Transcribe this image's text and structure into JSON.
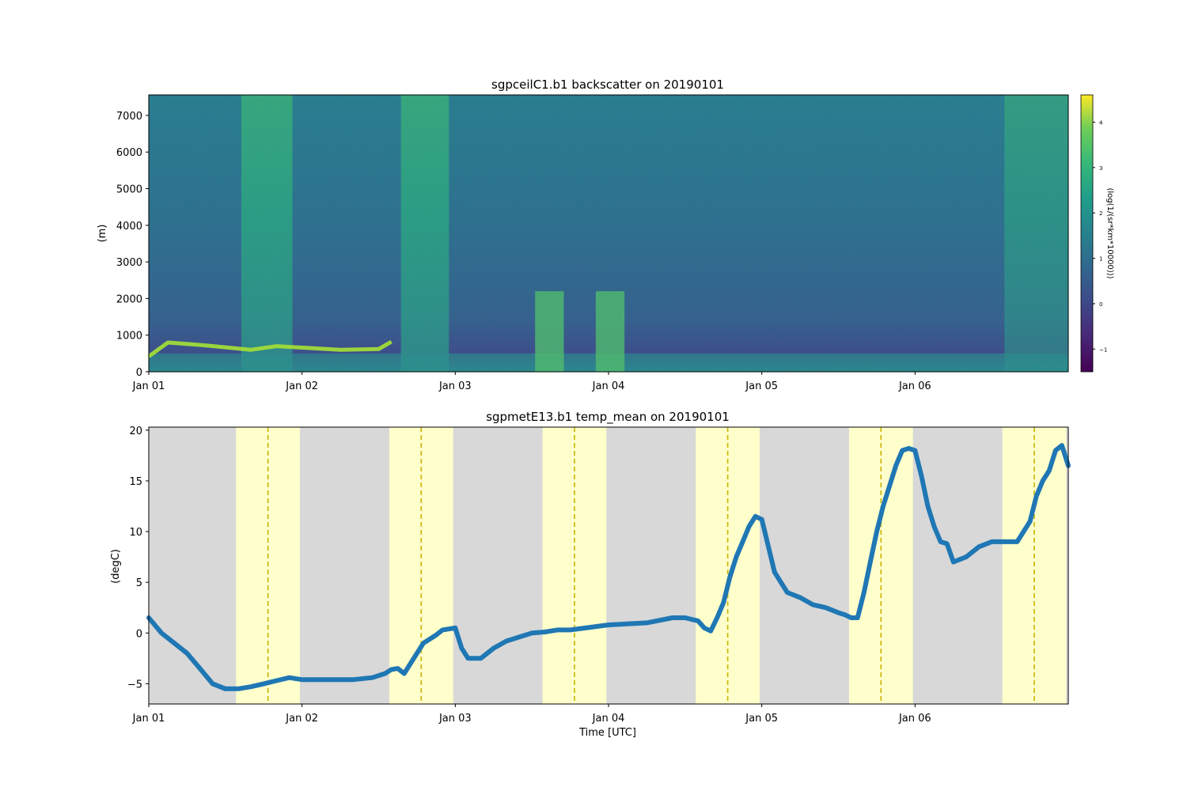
{
  "chart_data": [
    {
      "type": "heatmap",
      "title": "sgpceilC1.b1 backscatter on 20190101",
      "ylabel": "(m)",
      "xlabel": "",
      "x_ticks": [
        "Jan 01",
        "Jan 02",
        "Jan 03",
        "Jan 04",
        "Jan 05",
        "Jan 06"
      ],
      "xlim": [
        "2019-01-01T00:00",
        "2019-01-07T00:00"
      ],
      "ylim": [
        0,
        7560
      ],
      "y_ticks": [
        0,
        1000,
        2000,
        3000,
        4000,
        5000,
        6000,
        7000
      ],
      "colorbar": {
        "label": "(log(1/(sr*km*10000)))",
        "range": [
          -1.5,
          4.6
        ],
        "ticks": [
          -1,
          0,
          1,
          2,
          3,
          4
        ],
        "tick_labels": [
          "−1",
          "0",
          "1",
          "2",
          "3",
          "4"
        ],
        "colormap": "viridis"
      },
      "cloud_base_layer": {
        "name": "cloud base",
        "x": [
          "2019-01-01T00:00",
          "2019-01-01T03:00",
          "2019-01-01T09:00",
          "2019-01-01T16:00",
          "2019-01-01T20:00",
          "2019-01-02T06:00",
          "2019-01-02T12:00",
          "2019-01-02T14:00"
        ],
        "y": [
          420,
          800,
          720,
          600,
          700,
          600,
          620,
          820
        ]
      },
      "notes_visible": "high-backscatter columns near Jan 01 14-22h and Jan 02 14-24h; precipitation near Jan 03 12h - Jan 04 02h"
    },
    {
      "type": "line",
      "title": "sgpmetE13.b1 temp_mean on 20190101",
      "xlabel": "Time [UTC]",
      "ylabel": "(degC)",
      "x_ticks": [
        "Jan 01",
        "Jan 02",
        "Jan 03",
        "Jan 04",
        "Jan 05",
        "Jan 06"
      ],
      "xlim": [
        "2019-01-01T00:00",
        "2019-01-07T00:00"
      ],
      "ylim": [
        -7,
        20.3
      ],
      "y_ticks": [
        -5,
        0,
        5,
        10,
        15,
        20
      ],
      "y_tick_labels": [
        "−5",
        "0",
        "5",
        "10",
        "15",
        "20"
      ],
      "daylight_bands": [
        [
          "2019-01-01T13:40",
          "2019-01-01T23:40"
        ],
        [
          "2019-01-02T13:40",
          "2019-01-02T23:40"
        ],
        [
          "2019-01-03T13:40",
          "2019-01-03T23:40"
        ],
        [
          "2019-01-04T13:40",
          "2019-01-04T23:40"
        ],
        [
          "2019-01-05T13:40",
          "2019-01-05T23:40"
        ],
        [
          "2019-01-06T13:40",
          "2019-01-06T23:40"
        ]
      ],
      "solar_noon_lines": [
        "2019-01-01T18:40",
        "2019-01-02T18:40",
        "2019-01-03T18:40",
        "2019-01-04T18:40",
        "2019-01-05T18:40",
        "2019-01-06T18:40"
      ],
      "colors": {
        "night": "#d8d8d8",
        "day": "#ffffcc",
        "noon_line": "#c8b400",
        "series": "#1f77b4"
      },
      "series": [
        {
          "x": [
            "2019-01-01T00:00",
            "2019-01-01T02:00",
            "2019-01-01T04:00",
            "2019-01-01T06:00",
            "2019-01-01T08:00",
            "2019-01-01T10:00",
            "2019-01-01T12:00",
            "2019-01-01T14:00",
            "2019-01-01T16:00",
            "2019-01-01T18:00",
            "2019-01-01T20:00",
            "2019-01-01T22:00",
            "2019-01-02T00:00",
            "2019-01-02T02:00",
            "2019-01-02T05:00",
            "2019-01-02T08:00",
            "2019-01-02T11:00",
            "2019-01-02T13:00",
            "2019-01-02T14:00",
            "2019-01-02T15:00",
            "2019-01-02T16:00",
            "2019-01-02T17:00",
            "2019-01-02T19:00",
            "2019-01-02T21:00",
            "2019-01-02T22:00",
            "2019-01-03T00:00",
            "2019-01-03T01:00",
            "2019-01-03T02:00",
            "2019-01-03T03:00",
            "2019-01-03T04:00",
            "2019-01-03T05:00",
            "2019-01-03T06:00",
            "2019-01-03T08:00",
            "2019-01-03T10:00",
            "2019-01-03T12:00",
            "2019-01-03T14:00",
            "2019-01-03T16:00",
            "2019-01-03T18:00",
            "2019-01-04T00:00",
            "2019-01-04T06:00",
            "2019-01-04T10:00",
            "2019-01-04T12:00",
            "2019-01-04T14:00",
            "2019-01-04T15:00",
            "2019-01-04T16:00",
            "2019-01-04T17:00",
            "2019-01-04T18:00",
            "2019-01-04T19:00",
            "2019-01-04T20:00",
            "2019-01-04T21:00",
            "2019-01-04T22:00",
            "2019-01-04T23:00",
            "2019-01-05T00:00",
            "2019-01-05T02:00",
            "2019-01-05T04:00",
            "2019-01-05T06:00",
            "2019-01-05T08:00",
            "2019-01-05T10:00",
            "2019-01-05T12:00",
            "2019-01-05T13:00",
            "2019-01-05T14:00",
            "2019-01-05T15:00",
            "2019-01-05T16:00",
            "2019-01-05T17:00",
            "2019-01-05T18:00",
            "2019-01-05T19:00",
            "2019-01-05T20:00",
            "2019-01-05T21:00",
            "2019-01-05T22:00",
            "2019-01-05T23:00",
            "2019-01-06T00:00",
            "2019-01-06T01:00",
            "2019-01-06T02:00",
            "2019-01-06T03:00",
            "2019-01-06T04:00",
            "2019-01-06T05:00",
            "2019-01-06T06:00",
            "2019-01-06T08:00",
            "2019-01-06T10:00",
            "2019-01-06T12:00",
            "2019-01-06T14:00",
            "2019-01-06T16:00",
            "2019-01-06T18:00",
            "2019-01-06T19:00",
            "2019-01-06T20:00",
            "2019-01-06T21:00",
            "2019-01-06T22:00",
            "2019-01-06T23:00",
            "2019-01-07T00:00"
          ],
          "values": [
            1.5,
            0.0,
            -1.0,
            -2.0,
            -3.5,
            -5.0,
            -5.5,
            -5.5,
            -5.3,
            -5.0,
            -4.7,
            -4.4,
            -4.6,
            -4.6,
            -4.6,
            -4.6,
            -4.4,
            -4.0,
            -3.6,
            -3.5,
            -4.0,
            -3.0,
            -1.0,
            -0.2,
            0.3,
            0.5,
            -1.5,
            -2.5,
            -2.5,
            -2.5,
            -2.0,
            -1.5,
            -0.8,
            -0.4,
            0.0,
            0.1,
            0.3,
            0.3,
            0.8,
            1.0,
            1.5,
            1.5,
            1.2,
            0.5,
            0.2,
            1.5,
            3.0,
            5.5,
            7.5,
            9.0,
            10.5,
            11.5,
            11.2,
            6.0,
            4.0,
            3.5,
            2.8,
            2.5,
            2.0,
            1.8,
            1.5,
            1.5,
            4.0,
            7.0,
            10.0,
            12.5,
            14.5,
            16.5,
            18.0,
            18.2,
            18.0,
            15.5,
            12.5,
            10.5,
            9.0,
            8.8,
            7.0,
            7.5,
            8.5,
            9.0,
            9.0,
            9.0,
            11.0,
            13.5,
            15.0,
            16.0,
            18.0,
            18.5,
            16.5
          ]
        }
      ]
    }
  ]
}
